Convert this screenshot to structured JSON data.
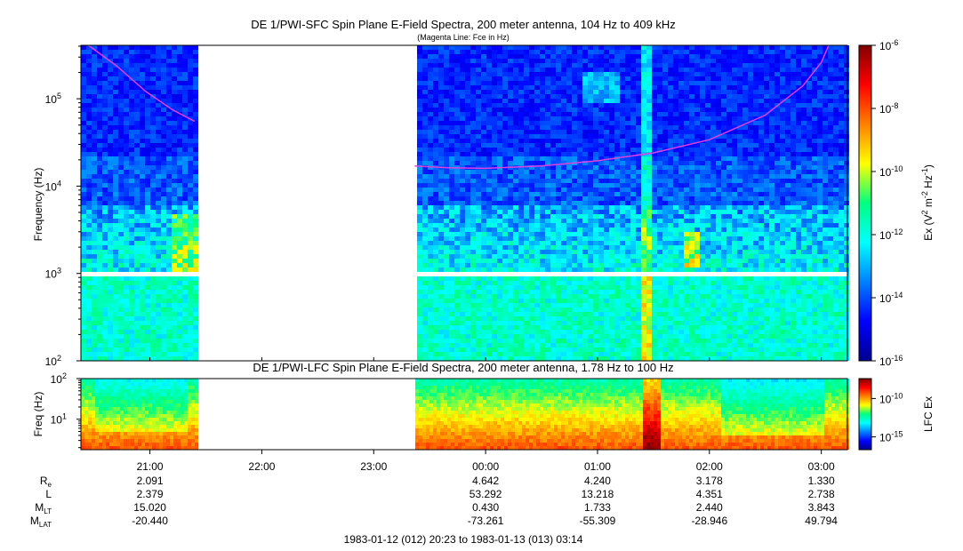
{
  "chart_data": [
    {
      "type": "heatmap",
      "title": "DE 1/PWI-SFC  Spin Plane E-Field Spectra, 200 meter antenna, 104 Hz to 409 kHz",
      "subtitle": "(Magenta Line: Fce in Hz)",
      "ylabel": "Frequency (Hz)",
      "ylim": [
        100,
        409000
      ],
      "y_scale": "log",
      "y_ticks": [
        {
          "value": 100,
          "base": "10",
          "exp": "2"
        },
        {
          "value": 1000,
          "base": "10",
          "exp": "3"
        },
        {
          "value": 10000,
          "base": "10",
          "exp": "4"
        },
        {
          "value": 100000,
          "base": "10",
          "exp": "5"
        }
      ],
      "colorbar": {
        "label_parts": [
          "Ex (V",
          "2",
          " m",
          "-2",
          " Hz",
          "-1",
          ")"
        ],
        "scale": "log",
        "range": [
          1e-16,
          1e-06
        ],
        "ticks": [
          {
            "value": 1e-06,
            "base": "10",
            "exp": "-6"
          },
          {
            "value": 1e-08,
            "base": "10",
            "exp": "-8"
          },
          {
            "value": 1e-10,
            "base": "10",
            "exp": "-10"
          },
          {
            "value": 1e-12,
            "base": "10",
            "exp": "-12"
          },
          {
            "value": 1e-14,
            "base": "10",
            "exp": "-14"
          },
          {
            "value": 1e-16,
            "base": "10",
            "exp": "-16"
          }
        ]
      },
      "data_gaps": [
        [
          "21:26",
          "23:22"
        ]
      ],
      "fce_line": {
        "color": "#e040e0",
        "segments": [
          {
            "time": [
              "20:27",
              "20:42",
              "20:58",
              "21:12",
              "21:24"
            ],
            "freq": [
              409000,
              240000,
              120000,
              75000,
              55000
            ]
          },
          {
            "time": [
              "23:22",
              "23:40",
              "00:00",
              "00:30",
              "01:00",
              "01:30",
              "02:00",
              "02:30",
              "02:50",
              "03:00",
              "03:04"
            ],
            "freq": [
              17000,
              16200,
              16000,
              17000,
              19500,
              24000,
              34000,
              65000,
              140000,
              260000,
              409000
            ]
          }
        ]
      }
    },
    {
      "type": "heatmap",
      "title": "DE 1/PWI-LFC  Spin Plane E-Field Spectra, 200 meter antenna, 1.78 Hz to 100 Hz",
      "ylabel": "Freq (Hz)",
      "ylim": [
        1.78,
        100
      ],
      "y_scale": "log",
      "y_ticks": [
        {
          "value": 10,
          "base": "10",
          "exp": "1"
        },
        {
          "value": 100,
          "base": "10",
          "exp": "2"
        }
      ],
      "colorbar": {
        "label": "LFC Ex",
        "scale": "log",
        "ticks": [
          {
            "value": 1e-10,
            "base": "10",
            "exp": "-10"
          },
          {
            "value": 1e-15,
            "base": "10",
            "exp": "-15"
          }
        ]
      },
      "data_gaps": [
        [
          "21:26",
          "23:22"
        ]
      ]
    }
  ],
  "time_axis": {
    "start": "1983-01-12 20:23",
    "end": "1983-01-13 03:14",
    "tick_labels": [
      "21:00",
      "22:00",
      "23:00",
      "00:00",
      "01:00",
      "02:00",
      "03:00"
    ],
    "range_label": "1983-01-12 (012) 20:23 to 1983-01-13 (013) 03:14"
  },
  "ephemeris": {
    "rows": [
      {
        "label": "R",
        "sub": "e",
        "values": [
          "2.091",
          "",
          "",
          "4.642",
          "4.240",
          "3.178",
          "1.330"
        ]
      },
      {
        "label": "L",
        "sub": "",
        "values": [
          "2.379",
          "",
          "",
          "53.292",
          "13.218",
          "4.351",
          "2.738"
        ]
      },
      {
        "label": "M",
        "sub": "LT",
        "values": [
          "15.020",
          "",
          "",
          "0.430",
          "1.733",
          "2.440",
          "3.843"
        ]
      },
      {
        "label": "M",
        "sub": "LAT",
        "values": [
          "-20.440",
          "",
          "",
          "-73.261",
          "-55.309",
          "-28.946",
          "49.794"
        ]
      }
    ]
  }
}
